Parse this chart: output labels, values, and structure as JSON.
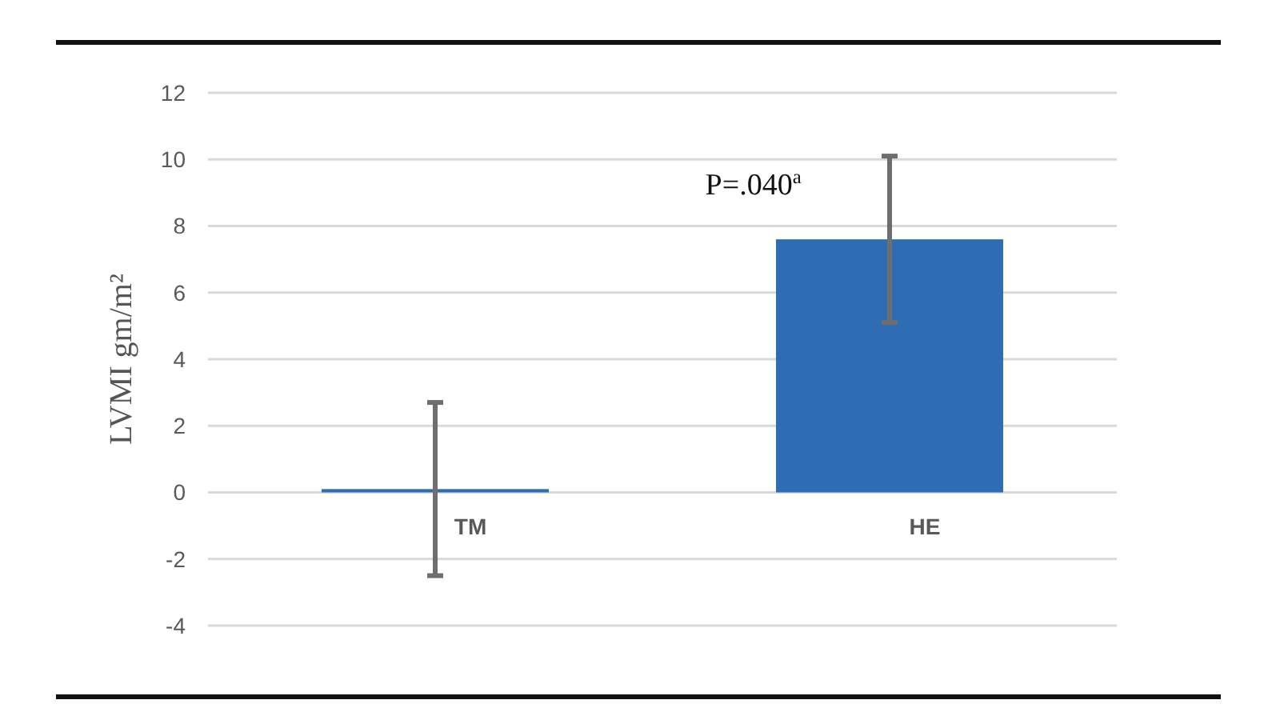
{
  "chart_data": {
    "type": "bar",
    "ylabel": "LVMI gm/m²",
    "categories": [
      "TM",
      "HE"
    ],
    "values": [
      0.1,
      7.6
    ],
    "errors": [
      2.6,
      2.5
    ],
    "color": "#2e6db4",
    "ylim": [
      -4,
      12
    ],
    "yticks": [
      -4,
      -2,
      0,
      2,
      4,
      6,
      8,
      10,
      12
    ],
    "grid": "y",
    "annotations": [
      "P=.040$^{a}$"
    ]
  }
}
